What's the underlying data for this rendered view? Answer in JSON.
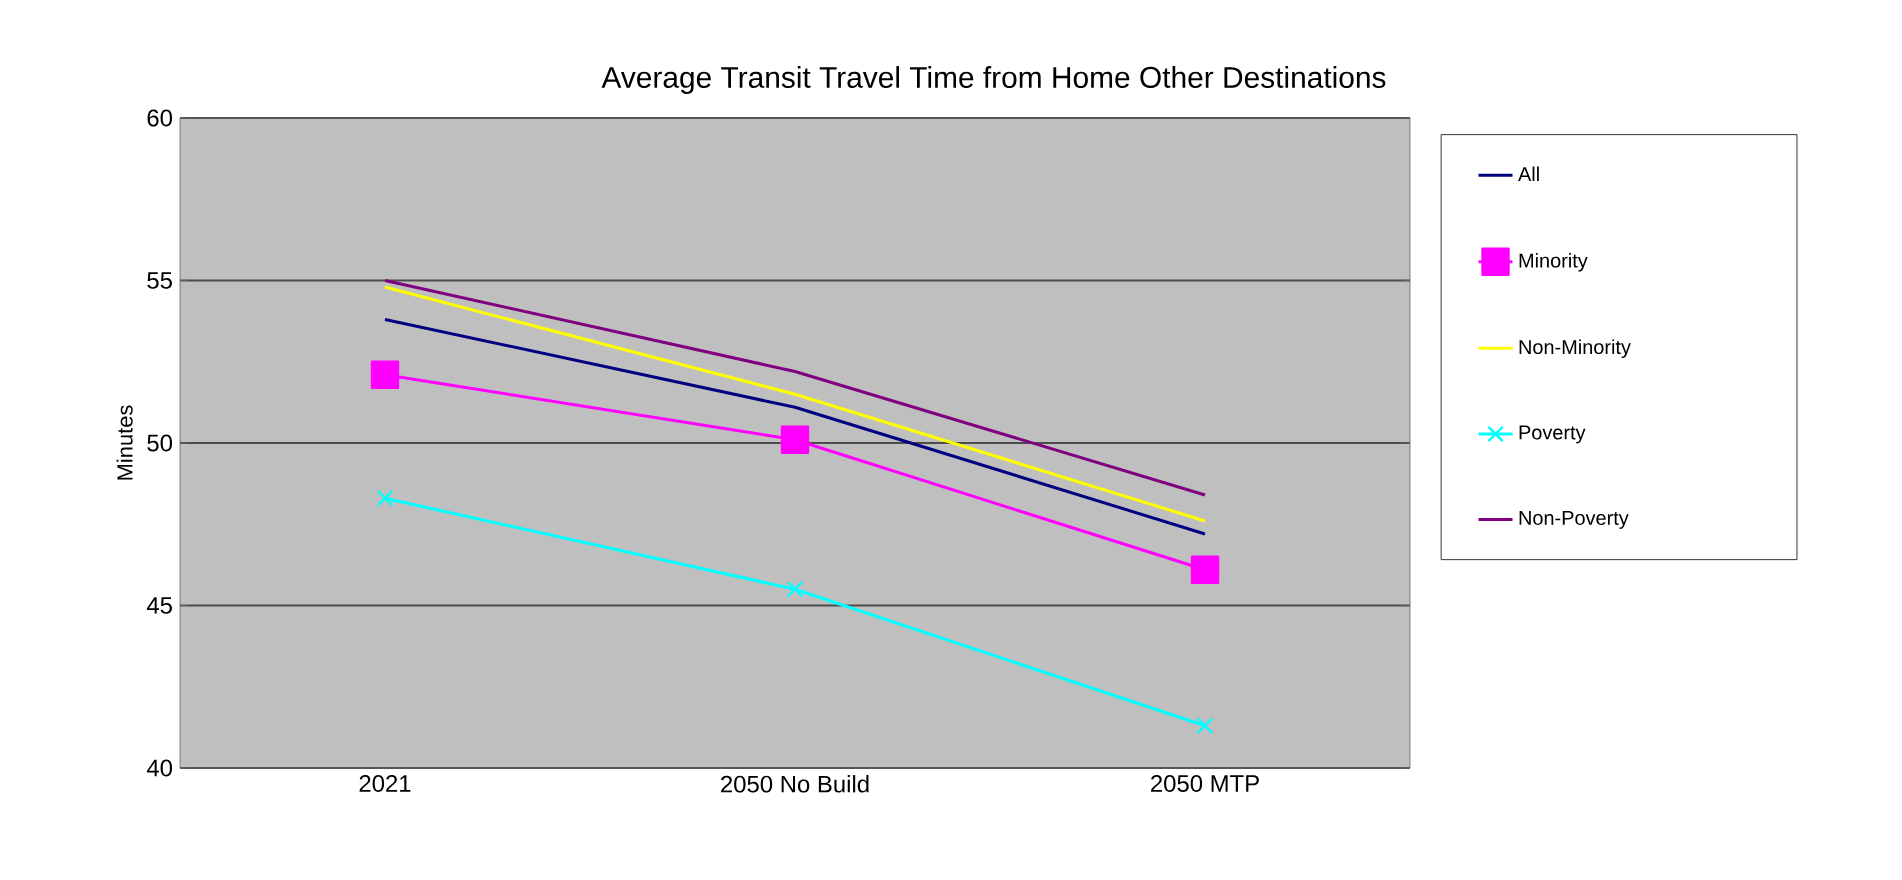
{
  "chart_data": {
    "type": "line",
    "title": "Average Transit Travel Time  from Home Other Destinations",
    "ylabel": "Minutes",
    "categories": [
      "2021",
      "2050 No Build",
      "2050 MTP"
    ],
    "series": [
      {
        "name": "All",
        "color": "#000080",
        "values": [
          53.8,
          51.1,
          47.2
        ]
      },
      {
        "name": "Minority",
        "color": "#ff00ff",
        "marker": "square",
        "values": [
          52.1,
          50.1,
          46.1
        ]
      },
      {
        "name": "Non-Minority",
        "color": "#ffff00",
        "values": [
          54.8,
          51.5,
          47.6
        ]
      },
      {
        "name": "Poverty",
        "color": "#00ffff",
        "marker": "cross",
        "values": [
          48.3,
          45.5,
          41.3
        ]
      },
      {
        "name": "Non-Poverty",
        "color": "#800080",
        "values": [
          55.0,
          52.2,
          48.4
        ]
      }
    ],
    "ylim": [
      40,
      60
    ],
    "yticks": [
      40,
      45,
      50,
      55,
      60
    ],
    "grid": "y",
    "legend": "right",
    "marker": "none",
    "line_style": "solid"
  }
}
